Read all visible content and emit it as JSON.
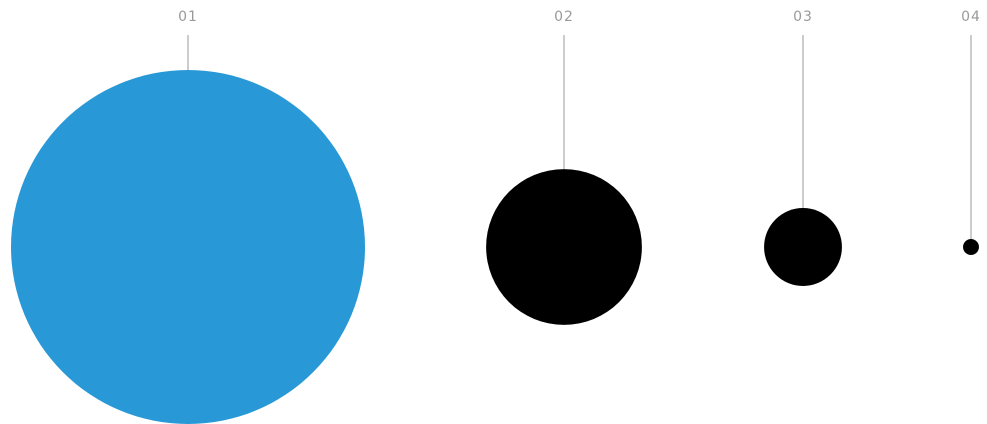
{
  "colors": {
    "highlight": "#2899d6",
    "default": "#000000",
    "connector": "#9a9a9a",
    "label": "#9a9a9a"
  },
  "items": [
    {
      "label": "01",
      "relative_size": 1.0,
      "highlighted": true
    },
    {
      "label": "02",
      "relative_size": 0.44,
      "highlighted": false
    },
    {
      "label": "03",
      "relative_size": 0.22,
      "highlighted": false
    },
    {
      "label": "04",
      "relative_size": 0.045,
      "highlighted": false
    }
  ]
}
